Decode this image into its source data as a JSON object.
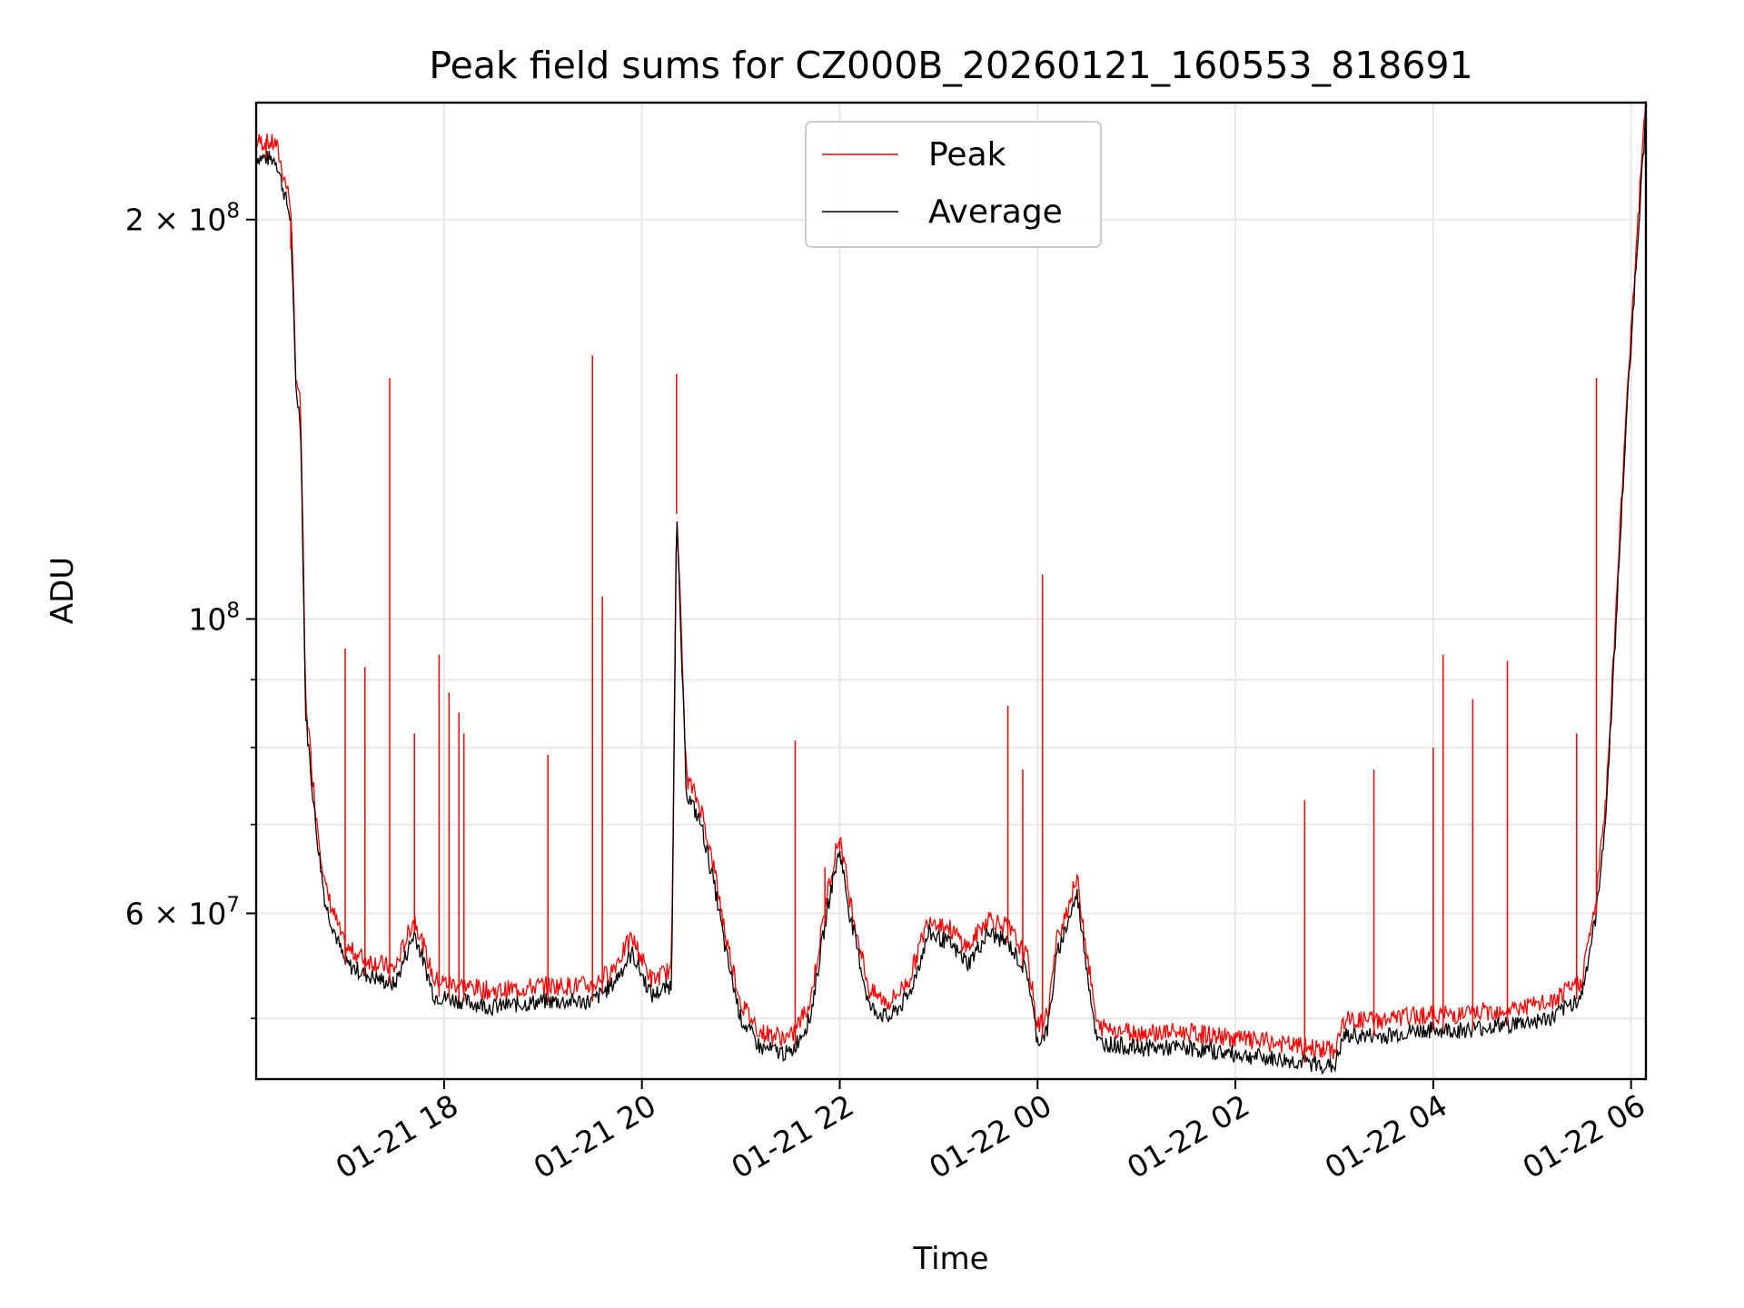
{
  "chart_data": {
    "type": "line",
    "title": "Peak field sums for CZ000B_20260121_160553_818691",
    "xlabel": "Time",
    "ylabel": "ADU",
    "yscale": "log",
    "ylim": [
      45000000,
      245000000
    ],
    "xlim_hours": [
      16.1,
      30.15
    ],
    "x_unit": "hours since 2026-01-21 00:00",
    "grid": true,
    "legend_position": "top-center",
    "x_ticks": [
      {
        "value": 18,
        "label": "01-21 18"
      },
      {
        "value": 20,
        "label": "01-21 20"
      },
      {
        "value": 22,
        "label": "01-21 22"
      },
      {
        "value": 24,
        "label": "01-22 00"
      },
      {
        "value": 26,
        "label": "01-22 02"
      },
      {
        "value": 28,
        "label": "01-22 04"
      },
      {
        "value": 30,
        "label": "01-22 06"
      }
    ],
    "y_major_ticks": [
      {
        "value": 60000000,
        "base": "6 × 10",
        "exp": "7"
      },
      {
        "value": 100000000,
        "base": "10",
        "exp": "8"
      },
      {
        "value": 200000000,
        "base": "2 × 10",
        "exp": "8"
      }
    ],
    "y_minor_grid": [
      50000000,
      70000000,
      80000000,
      90000000
    ],
    "series": [
      {
        "name": "Average",
        "color": "#000000",
        "x": [
          16.1,
          16.3,
          16.45,
          16.5,
          16.55,
          16.6,
          16.7,
          16.8,
          17.0,
          17.2,
          17.5,
          17.7,
          17.9,
          18.2,
          18.5,
          19.0,
          19.5,
          19.7,
          19.9,
          20.1,
          20.3,
          20.35,
          20.45,
          20.6,
          20.75,
          20.85,
          21.0,
          21.2,
          21.5,
          21.7,
          21.9,
          22.0,
          22.1,
          22.3,
          22.5,
          22.7,
          22.9,
          23.1,
          23.3,
          23.5,
          23.7,
          23.9,
          24.0,
          24.1,
          24.2,
          24.4,
          24.6,
          25.0,
          25.5,
          26.0,
          26.5,
          27.0,
          27.1,
          27.5,
          27.9,
          28.3,
          28.8,
          29.2,
          29.5,
          29.65,
          29.75,
          29.85,
          29.95,
          30.05,
          30.15
        ],
        "values": [
          223000000,
          222000000,
          200000000,
          150000000,
          140000000,
          85000000,
          70000000,
          61000000,
          55000000,
          54000000,
          53000000,
          58000000,
          52000000,
          51500000,
          51000000,
          51500000,
          51500000,
          53000000,
          56000000,
          52000000,
          53000000,
          120000000,
          74000000,
          70000000,
          62000000,
          56000000,
          50000000,
          47500000,
          47000000,
          50000000,
          62000000,
          67000000,
          60000000,
          51000000,
          50000000,
          52000000,
          58000000,
          57000000,
          55000000,
          58000000,
          57000000,
          54000000,
          48000000,
          49000000,
          56000000,
          62000000,
          48000000,
          47500000,
          47500000,
          47000000,
          46500000,
          46000000,
          48500000,
          48500000,
          49000000,
          49000000,
          49500000,
          50000000,
          52000000,
          60000000,
          72000000,
          100000000,
          140000000,
          185000000,
          240000000
        ]
      },
      {
        "name": "Peak",
        "color": "#ff0000",
        "x": [
          16.2,
          16.45,
          17.0,
          17.2,
          17.45,
          17.7,
          17.95,
          18.05,
          18.15,
          18.2,
          19.05,
          19.5,
          19.6,
          20.35,
          21.55,
          21.85,
          22.0,
          23.7,
          23.85,
          24.05,
          26.7,
          27.4,
          28.0,
          28.1,
          28.4,
          28.75,
          29.45,
          29.65
        ],
        "values": [
          230000000,
          190000000,
          95000000,
          92000000,
          152000000,
          82000000,
          94000000,
          88000000,
          85000000,
          82000000,
          79000000,
          158000000,
          104000000,
          153000000,
          81000000,
          65000000,
          68000000,
          86000000,
          77000000,
          108000000,
          73000000,
          77000000,
          80000000,
          94000000,
          87000000,
          93000000,
          82000000,
          152000000
        ]
      }
    ]
  }
}
